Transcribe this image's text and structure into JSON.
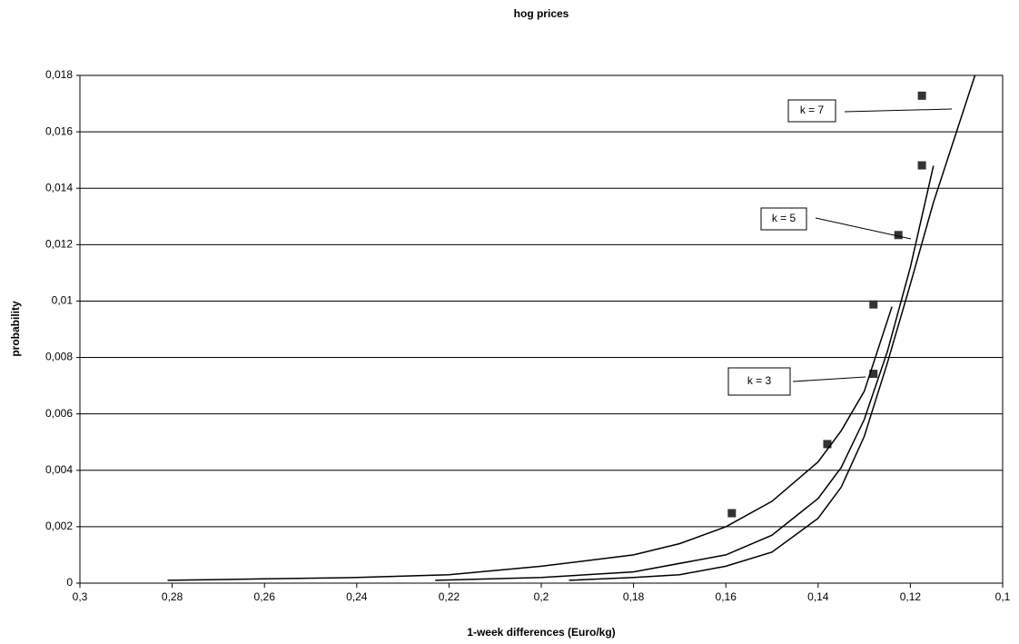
{
  "chart_data": {
    "type": "scatter",
    "title": "hog prices",
    "x_label": "1-week differences (Euro/kg)",
    "y_label": "probability",
    "xlim": [
      0.3,
      0.1
    ],
    "xticks": [
      {
        "value": 0.3,
        "label": "0,3"
      },
      {
        "value": 0.28,
        "label": "0,28"
      },
      {
        "value": 0.26,
        "label": "0,26"
      },
      {
        "value": 0.24,
        "label": "0,24"
      },
      {
        "value": 0.22,
        "label": "0,22"
      },
      {
        "value": 0.2,
        "label": "0,2"
      },
      {
        "value": 0.18,
        "label": "0,18"
      },
      {
        "value": 0.16,
        "label": "0,16"
      },
      {
        "value": 0.14,
        "label": "0,14"
      },
      {
        "value": 0.12,
        "label": "0,12"
      },
      {
        "value": 0.1,
        "label": "0,1"
      }
    ],
    "ylim": [
      0,
      0.018
    ],
    "yticks": [
      0,
      {
        "value": 0.002,
        "label": "0,002"
      },
      {
        "value": 0.004,
        "label": "0,004"
      },
      {
        "value": 0.006,
        "label": "0,006"
      },
      {
        "value": 0.008,
        "label": "0,008"
      },
      {
        "value": 0.01,
        "label": "0,01"
      },
      {
        "value": 0.012,
        "label": "0,012"
      },
      {
        "value": 0.014,
        "label": "0,014"
      },
      {
        "value": 0.016,
        "label": "0,016"
      },
      {
        "value": 0.018,
        "label": "0,018"
      }
    ],
    "grid": true,
    "series": [
      {
        "type": "scatter",
        "color": "#333333",
        "x": [
          0.1587,
          0.138,
          0.128,
          0.128,
          0.1226,
          0.1175,
          0.1175
        ],
        "values": [
          0.00248,
          0.00493,
          0.00742,
          0.00988,
          0.01234,
          0.01481,
          0.01728
        ]
      },
      {
        "type": "line",
        "name": "k = 3",
        "color": "#000000",
        "x": [
          0.281,
          0.26,
          0.24,
          0.22,
          0.2,
          0.18,
          0.17,
          0.16,
          0.15,
          0.14,
          0.135,
          0.13,
          0.124
        ],
        "values": [
          0.0001,
          0.00015,
          0.0002,
          0.0003,
          0.0006,
          0.001,
          0.0014,
          0.002,
          0.0029,
          0.0043,
          0.0054,
          0.0068,
          0.0098
        ]
      },
      {
        "type": "line",
        "name": "k = 5",
        "color": "#000000",
        "x": [
          0.223,
          0.2,
          0.18,
          0.16,
          0.15,
          0.14,
          0.135,
          0.13,
          0.125,
          0.12,
          0.115
        ],
        "values": [
          0.0001,
          0.0002,
          0.0004,
          0.001,
          0.0017,
          0.003,
          0.0041,
          0.0058,
          0.0082,
          0.0112,
          0.0148
        ]
      },
      {
        "type": "line",
        "name": "k = 7",
        "color": "#000000",
        "x": [
          0.194,
          0.18,
          0.17,
          0.16,
          0.15,
          0.14,
          0.135,
          0.13,
          0.125,
          0.12,
          0.115,
          0.11,
          0.106
        ],
        "values": [
          0.0001,
          0.0002,
          0.0003,
          0.0006,
          0.0011,
          0.0023,
          0.0034,
          0.0052,
          0.0078,
          0.0106,
          0.0135,
          0.016,
          0.018
        ]
      }
    ]
  }
}
